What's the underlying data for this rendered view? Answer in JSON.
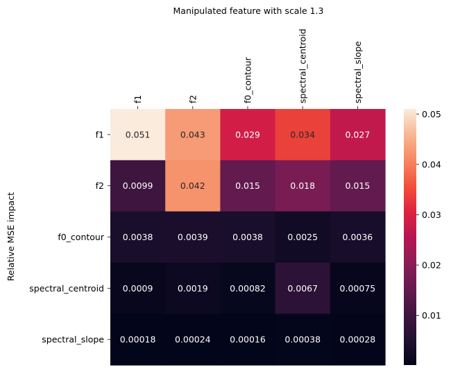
{
  "chart_data": {
    "type": "heatmap",
    "title": "Manipulated feature with scale 1.3",
    "ylabel": "Relative MSE impact",
    "xlabel": "",
    "x_categories": [
      "f1",
      "f2",
      "f0_contour",
      "spectral_centroid",
      "spectral_slope"
    ],
    "y_categories": [
      "f1",
      "f2",
      "f0_contour",
      "spectral_centroid",
      "spectral_slope"
    ],
    "values": [
      [
        0.051,
        0.043,
        0.029,
        0.034,
        0.027
      ],
      [
        0.0099,
        0.042,
        0.015,
        0.018,
        0.015
      ],
      [
        0.0038,
        0.0039,
        0.0038,
        0.0025,
        0.0036
      ],
      [
        0.0009,
        0.0019,
        0.00082,
        0.0067,
        0.00075
      ],
      [
        0.00018,
        0.00024,
        0.00016,
        0.00038,
        0.00028
      ]
    ],
    "cell_labels": [
      [
        "0.051",
        "0.043",
        "0.029",
        "0.034",
        "0.027"
      ],
      [
        "0.0099",
        "0.042",
        "0.015",
        "0.018",
        "0.015"
      ],
      [
        "0.0038",
        "0.0039",
        "0.0038",
        "0.0025",
        "0.0036"
      ],
      [
        "0.0009",
        "0.0019",
        "0.00082",
        "0.0067",
        "0.00075"
      ],
      [
        "0.00018",
        "0.00024",
        "0.00016",
        "0.00038",
        "0.00028"
      ]
    ],
    "colormap": "rocket",
    "color_range": [
      0.00016,
      0.051
    ],
    "colorbar_ticks": [
      "0.01",
      "0.02",
      "0.03",
      "0.04",
      "0.05"
    ],
    "colorbar_tick_values": [
      0.01,
      0.02,
      0.03,
      0.04,
      0.05
    ],
    "x_tick_position": "top",
    "x_tick_rotation": "vertical",
    "grid": false,
    "colorbar": "right"
  }
}
